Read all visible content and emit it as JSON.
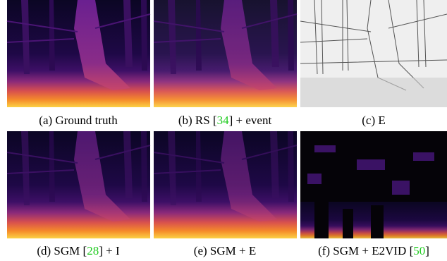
{
  "panels": [
    {
      "caption": "(a) Ground truth"
    },
    {
      "caption_before": "(b) RS [",
      "citation": "34",
      "caption_after": "] + event"
    },
    {
      "caption": "(c) E"
    },
    {
      "caption_before": "(d) SGM [",
      "citation": "28",
      "caption_after": "] + I"
    },
    {
      "caption": "(e) SGM + E"
    },
    {
      "caption_before": "(f) SGM + E2VID [",
      "citation": "50",
      "caption_after": "]"
    }
  ]
}
